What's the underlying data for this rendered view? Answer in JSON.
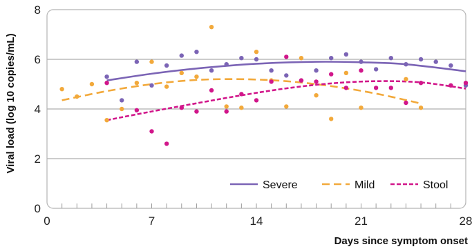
{
  "chart_data": {
    "type": "scatter",
    "xlabel": "Days since symptom onset",
    "ylabel": "Viral load (log 10 copies/mL)",
    "xlim": [
      0,
      28
    ],
    "ylim": [
      0,
      8
    ],
    "x_ticks": [
      0,
      7,
      14,
      21,
      28
    ],
    "y_ticks": [
      0,
      2,
      4,
      6,
      8
    ],
    "grid": "horizontal",
    "legend_position": "bottom-right",
    "series": [
      {
        "name": "Severe",
        "color": "#7b64b5",
        "line_style": "solid",
        "points": [
          [
            4,
            5.3
          ],
          [
            5,
            4.35
          ],
          [
            6,
            5.9
          ],
          [
            7,
            4.95
          ],
          [
            8,
            5.75
          ],
          [
            9,
            6.15
          ],
          [
            10,
            6.3
          ],
          [
            11,
            5.55
          ],
          [
            12,
            5.8
          ],
          [
            13,
            6.05
          ],
          [
            14,
            6.0
          ],
          [
            15,
            5.55
          ],
          [
            16,
            5.35
          ],
          [
            17,
            5.15
          ],
          [
            18,
            5.55
          ],
          [
            19,
            6.05
          ],
          [
            20,
            6.2
          ],
          [
            21,
            5.9
          ],
          [
            22,
            5.6
          ],
          [
            23,
            6.05
          ],
          [
            24,
            5.8
          ],
          [
            25,
            6.0
          ],
          [
            26,
            5.9
          ],
          [
            27,
            5.75
          ],
          [
            28,
            4.95
          ]
        ],
        "fit": [
          [
            4,
            5.15
          ],
          [
            7,
            5.42
          ],
          [
            10,
            5.63
          ],
          [
            14,
            5.82
          ],
          [
            18,
            5.9
          ],
          [
            21,
            5.88
          ],
          [
            24,
            5.8
          ],
          [
            28,
            5.52
          ]
        ]
      },
      {
        "name": "Mild",
        "color": "#f2a93b",
        "line_style": "dashed",
        "points": [
          [
            1,
            4.8
          ],
          [
            2,
            4.5
          ],
          [
            3,
            5.0
          ],
          [
            4,
            3.55
          ],
          [
            5,
            4.0
          ],
          [
            6,
            5.05
          ],
          [
            7,
            5.9
          ],
          [
            8,
            4.9
          ],
          [
            9,
            5.45
          ],
          [
            10,
            5.3
          ],
          [
            11,
            7.3
          ],
          [
            12,
            4.1
          ],
          [
            13,
            4.05
          ],
          [
            14,
            6.3
          ],
          [
            15,
            5.15
          ],
          [
            16,
            4.1
          ],
          [
            17,
            6.05
          ],
          [
            18,
            4.55
          ],
          [
            19,
            3.6
          ],
          [
            20,
            5.45
          ],
          [
            21,
            4.05
          ],
          [
            24,
            5.2
          ],
          [
            25,
            4.05
          ]
        ],
        "fit": [
          [
            1,
            4.35
          ],
          [
            4,
            4.72
          ],
          [
            7,
            5.0
          ],
          [
            10,
            5.17
          ],
          [
            13,
            5.2
          ],
          [
            16,
            5.12
          ],
          [
            19,
            4.92
          ],
          [
            22,
            4.62
          ],
          [
            25,
            4.22
          ]
        ]
      },
      {
        "name": "Stool",
        "color": "#d1168a",
        "line_style": "dashed",
        "points": [
          [
            4,
            5.05
          ],
          [
            6,
            3.95
          ],
          [
            7,
            3.1
          ],
          [
            8,
            2.6
          ],
          [
            9,
            4.05
          ],
          [
            10,
            3.9
          ],
          [
            11,
            4.75
          ],
          [
            12,
            3.9
          ],
          [
            13,
            4.6
          ],
          [
            14,
            4.35
          ],
          [
            15,
            5.1
          ],
          [
            16,
            6.1
          ],
          [
            17,
            5.15
          ],
          [
            18,
            5.1
          ],
          [
            19,
            5.4
          ],
          [
            20,
            4.85
          ],
          [
            21,
            5.55
          ],
          [
            22,
            4.85
          ],
          [
            23,
            4.85
          ],
          [
            24,
            4.25
          ],
          [
            25,
            5.05
          ],
          [
            27,
            4.95
          ],
          [
            28,
            5.05
          ]
        ],
        "fit": [
          [
            4,
            3.55
          ],
          [
            7,
            3.9
          ],
          [
            10,
            4.23
          ],
          [
            13,
            4.55
          ],
          [
            16,
            4.83
          ],
          [
            19,
            5.03
          ],
          [
            22,
            5.12
          ],
          [
            25,
            5.07
          ],
          [
            28,
            4.82
          ]
        ]
      }
    ]
  }
}
